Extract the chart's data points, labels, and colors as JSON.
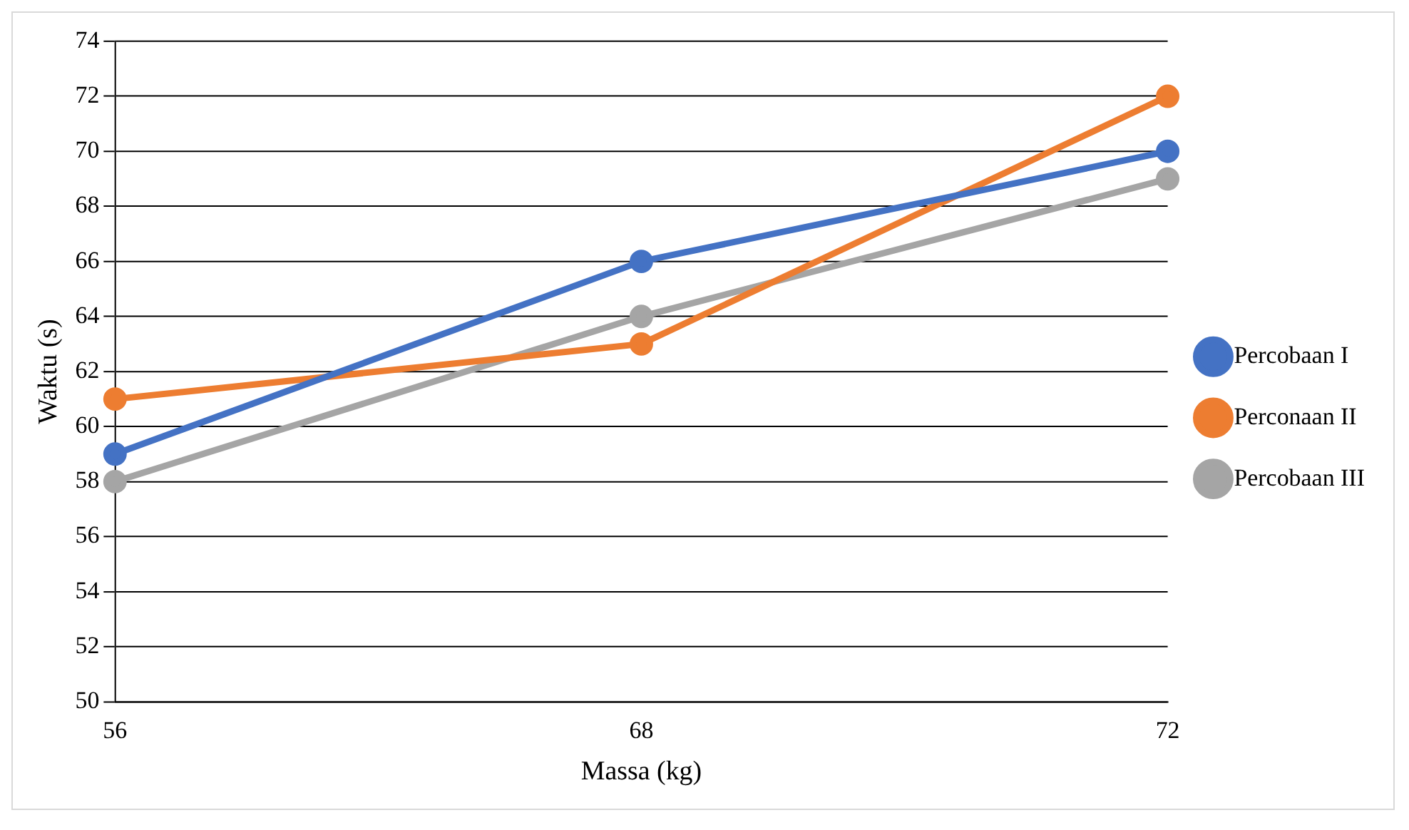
{
  "chart_data": {
    "type": "line",
    "xlabel": "Massa (kg)",
    "ylabel": "Waktu (s)",
    "categories": [
      "56",
      "68",
      "72"
    ],
    "series": [
      {
        "name": "Percobaan I",
        "color": "#4472c4",
        "values": [
          59,
          66,
          70
        ]
      },
      {
        "name": "Perconaan II",
        "color": "#ed7d31",
        "values": [
          61,
          63,
          72
        ]
      },
      {
        "name": "Percobaan III",
        "color": "#a5a5a5",
        "values": [
          58,
          64,
          69
        ]
      }
    ],
    "ylim": [
      50,
      74
    ],
    "yticks": [
      50,
      52,
      54,
      56,
      58,
      60,
      62,
      64,
      66,
      68,
      70,
      72,
      74
    ],
    "grid": "y",
    "legend": "right",
    "marker": "circle",
    "line_style": "solid"
  }
}
